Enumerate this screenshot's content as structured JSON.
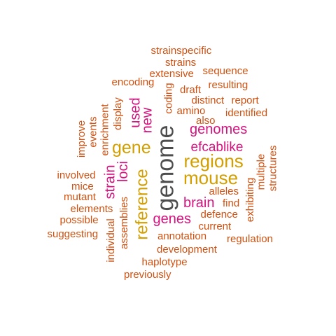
{
  "palette": {
    "grey": "#4d4d4d",
    "gold": "#d39e00",
    "pink": "#d5127e",
    "orange": "#d2500f"
  },
  "words": {
    "genome": "genome",
    "regions": "regions",
    "mouse": "mouse",
    "reference": "reference",
    "gene": "gene",
    "genes": "genes",
    "genomes": "genomes",
    "brain": "brain",
    "used": "used",
    "new": "new",
    "strain": "strain",
    "loci": "loci",
    "efcablike": "efcablike",
    "strainspecific": "strainspecific",
    "strains": "strains",
    "extensive": "extensive",
    "sequence": "sequence",
    "encoding": "encoding",
    "resulting": "resulting",
    "draft": "draft",
    "report": "report",
    "coding": "coding",
    "distinct": "distinct",
    "amino": "amino",
    "identified": "identified",
    "also": "also",
    "display": "display",
    "enrichment": "enrichment",
    "events": "events",
    "improve": "improve",
    "multiple": "multiple",
    "structures": "structures",
    "involved": "involved",
    "mice": "mice",
    "mutant": "mutant",
    "alleles": "alleles",
    "exhibiting": "exhibiting",
    "find": "find",
    "elements": "elements",
    "defence": "defence",
    "possible": "possible",
    "assemblies": "assemblies",
    "current": "current",
    "suggesting": "suggesting",
    "annotation": "annotation",
    "regulation": "regulation",
    "individual": "individual",
    "development": "development",
    "haplotype": "haplotype",
    "previously": "previously"
  }
}
